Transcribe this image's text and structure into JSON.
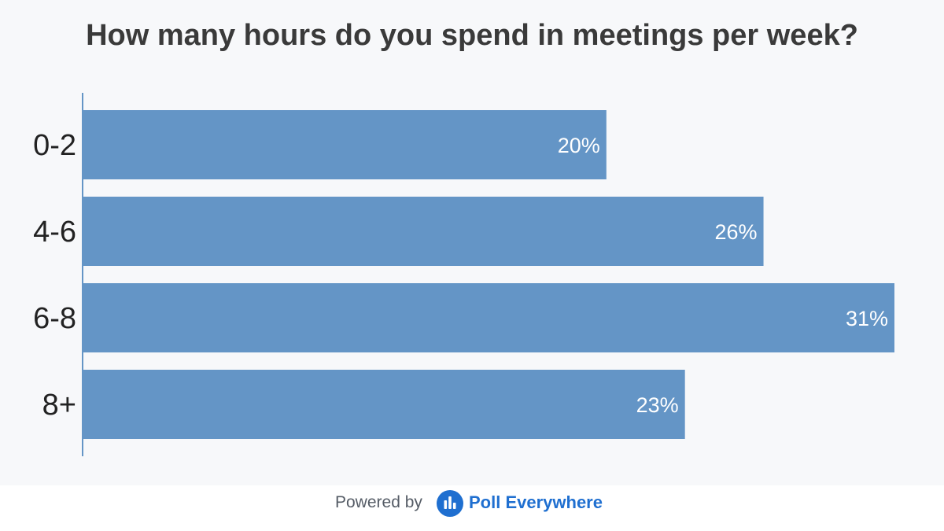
{
  "chart_data": {
    "type": "bar",
    "orientation": "horizontal",
    "title": "How many hours do you spend in meetings per week?",
    "categories": [
      "0-2",
      "4-6",
      "6-8",
      "8+"
    ],
    "values": [
      20,
      26,
      31,
      23
    ],
    "value_labels": [
      "20%",
      "26%",
      "31%",
      "23%"
    ],
    "xlim": [
      0,
      31
    ],
    "bar_color": "#6495c6",
    "grid": false,
    "legend": "none"
  },
  "footer": {
    "powered_by": "Powered by",
    "brand": "Poll Everywhere",
    "brand_color": "#1f6fd0",
    "logo_icon": "poll-everywhere-logo-icon"
  }
}
